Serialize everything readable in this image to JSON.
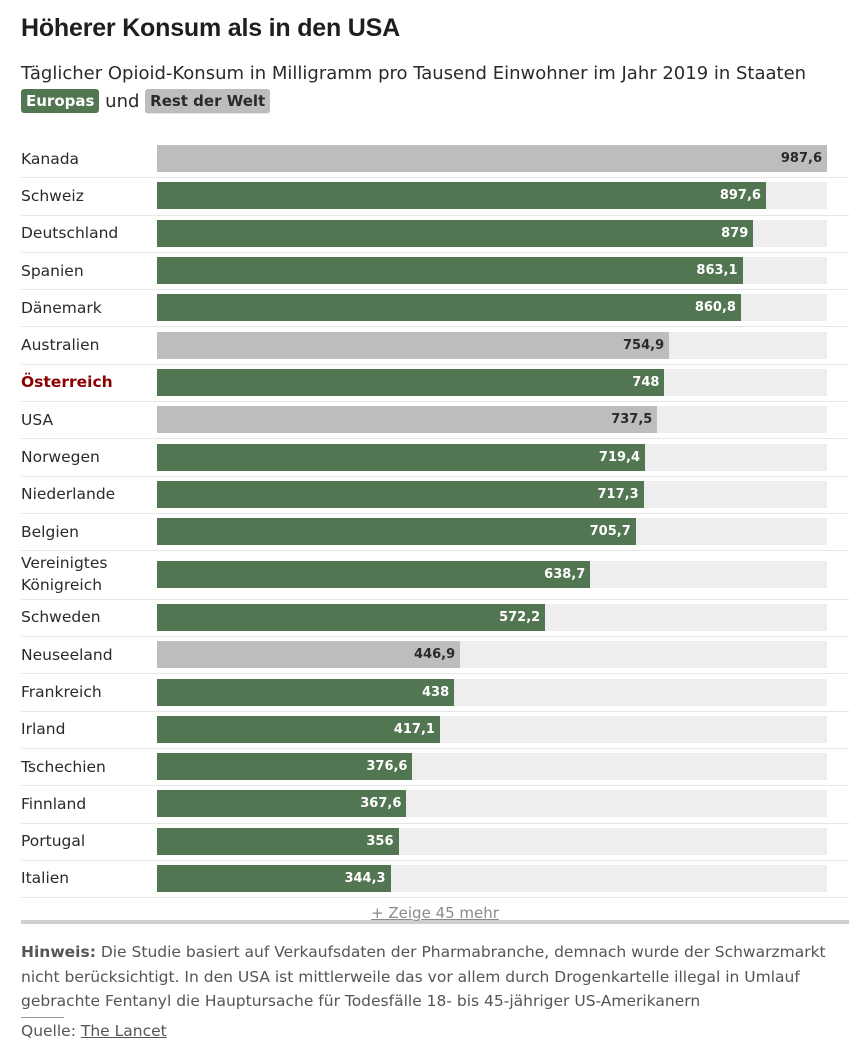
{
  "title": "Höherer Konsum als in den USA",
  "subtitle": "Täglicher Opioid-Konsum in Milligramm pro Tausend Einwohner im Jahr 2019 in Staaten",
  "legend": {
    "europe": "Europas",
    "connector": "und",
    "rest": "Rest der Welt"
  },
  "colors": {
    "europe": "#527552",
    "rest": "#bdbdbd",
    "track": "#eeeeee",
    "highlight": "#8b0000"
  },
  "chart_data": {
    "type": "bar",
    "orientation": "horizontal",
    "title": "Höherer Konsum als in den USA",
    "subtitle": "Täglicher Opioid-Konsum in Milligramm pro Tausend Einwohner im Jahr 2019 in Staaten",
    "xlim": [
      0,
      987.6
    ],
    "rows": [
      {
        "label": "Kanada",
        "value": 987.6,
        "display": "987,6",
        "group": "rest"
      },
      {
        "label": "Schweiz",
        "value": 897.6,
        "display": "897,6",
        "group": "europe"
      },
      {
        "label": "Deutschland",
        "value": 879,
        "display": "879",
        "group": "europe"
      },
      {
        "label": "Spanien",
        "value": 863.1,
        "display": "863,1",
        "group": "europe"
      },
      {
        "label": "Dänemark",
        "value": 860.8,
        "display": "860,8",
        "group": "europe"
      },
      {
        "label": "Australien",
        "value": 754.9,
        "display": "754,9",
        "group": "rest"
      },
      {
        "label": "Österreich",
        "value": 748,
        "display": "748",
        "group": "europe",
        "highlight": true
      },
      {
        "label": "USA",
        "value": 737.5,
        "display": "737,5",
        "group": "rest"
      },
      {
        "label": "Norwegen",
        "value": 719.4,
        "display": "719,4",
        "group": "europe"
      },
      {
        "label": "Niederlande",
        "value": 717.3,
        "display": "717,3",
        "group": "europe"
      },
      {
        "label": "Belgien",
        "value": 705.7,
        "display": "705,7",
        "group": "europe"
      },
      {
        "label": "Vereinigtes Königreich",
        "value": 638.7,
        "display": "638,7",
        "group": "europe",
        "tall": true
      },
      {
        "label": "Schweden",
        "value": 572.2,
        "display": "572,2",
        "group": "europe"
      },
      {
        "label": "Neuseeland",
        "value": 446.9,
        "display": "446,9",
        "group": "rest"
      },
      {
        "label": "Frankreich",
        "value": 438,
        "display": "438",
        "group": "europe"
      },
      {
        "label": "Irland",
        "value": 417.1,
        "display": "417,1",
        "group": "europe"
      },
      {
        "label": "Tschechien",
        "value": 376.6,
        "display": "376,6",
        "group": "europe"
      },
      {
        "label": "Finnland",
        "value": 367.6,
        "display": "367,6",
        "group": "europe"
      },
      {
        "label": "Portugal",
        "value": 356,
        "display": "356",
        "group": "europe"
      },
      {
        "label": "Italien",
        "value": 344.3,
        "display": "344,3",
        "group": "europe"
      }
    ]
  },
  "show_more": "+ Zeige 45 mehr",
  "note": {
    "label": "Hinweis:",
    "text": " Die Studie basiert auf Verkaufsdaten der Pharmabranche, demnach wurde der Schwarzmarkt nicht berücksichtigt. In den USA ist mittlerweile das vor allem durch Drogenkartelle illegal in Umlauf gebrachte Fentanyl die Hauptursache für Todesfälle 18- bis 45-jähriger US-Amerikanern"
  },
  "source": {
    "label": "Quelle:",
    "link_text": "The Lancet"
  }
}
